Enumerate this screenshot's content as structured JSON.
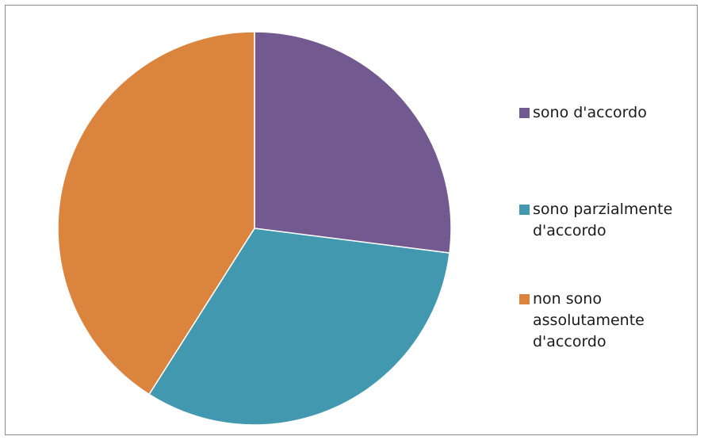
{
  "chart_data": {
    "type": "pie",
    "categories": [
      "sono d'accordo",
      "sono parzialmente d'accordo",
      "non sono assolutamente d'accordo"
    ],
    "values": [
      27,
      32,
      41
    ],
    "colors": [
      "#725990",
      "#4198AF",
      "#DB843D"
    ],
    "start_angle_deg": 0,
    "direction": "clockwise",
    "legend_position": "right",
    "title": "",
    "legend": [
      {
        "label": "sono d'accordo",
        "color": "#725990"
      },
      {
        "label": "sono parzialmente d'accordo",
        "color": "#4198AF"
      },
      {
        "label": "non sono assolutamente d'accordo",
        "color": "#DB843D"
      }
    ]
  }
}
